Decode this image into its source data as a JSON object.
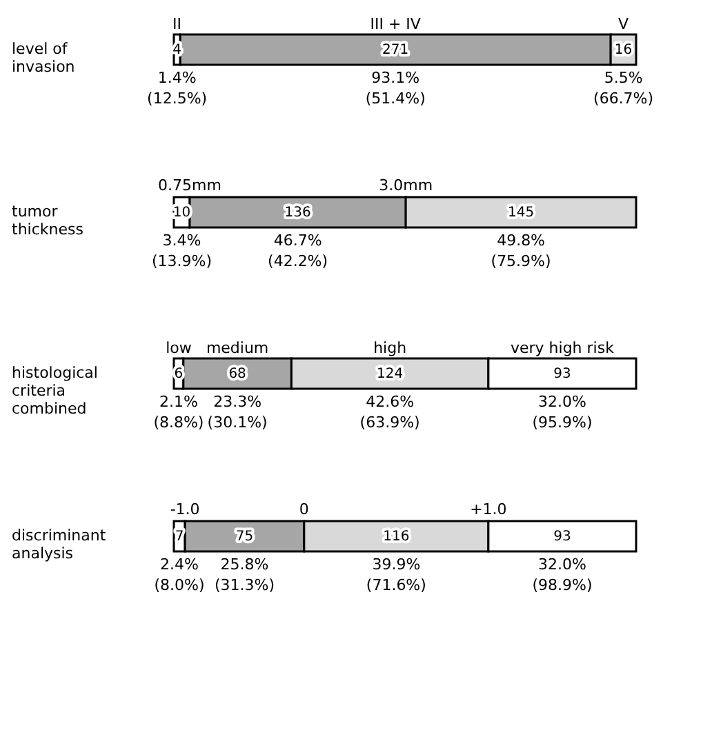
{
  "chart_data": [
    {
      "type": "bar",
      "orientation": "horizontal",
      "stacked": true,
      "data_labels": true,
      "categories": [
        "level of\ninvasion"
      ],
      "series": [
        {
          "name": "II",
          "color": "#ffffff",
          "values": [
            4
          ]
        },
        {
          "name": "III + IV",
          "color": "#a6a6a6",
          "values": [
            271
          ]
        },
        {
          "name": "V",
          "color": "#d9d9d9",
          "values": [
            16
          ]
        }
      ],
      "annotations": [
        "1.4%\n(12.5%)",
        "93.1%\n(51.4%)",
        "5.5%\n(66.7%)"
      ]
    },
    {
      "type": "bar",
      "orientation": "horizontal",
      "stacked": true,
      "data_labels": true,
      "categories": [
        "tumor\nthickness"
      ],
      "series": [
        {
          "color": "#ffffff",
          "values": [
            10
          ]
        },
        {
          "color": "#a6a6a6",
          "values": [
            136
          ]
        },
        {
          "color": "#d9d9d9",
          "values": [
            145
          ]
        }
      ],
      "annotations": [
        "3.4%\n(13.9%)",
        "46.7%\n(42.2%)",
        "49.8%\n(75.9%)",
        {
          "text": "0.75mm",
          "x": 10,
          "y": "tumor\nthickness"
        },
        {
          "text": "3.0mm",
          "x": 146,
          "y": "tumor\nthickness"
        }
      ]
    },
    {
      "type": "bar",
      "orientation": "horizontal",
      "stacked": true,
      "data_labels": true,
      "categories": [
        "histological\ncriteria\ncombined"
      ],
      "series": [
        {
          "name": "low",
          "color": "#ffffff",
          "values": [
            6
          ]
        },
        {
          "name": "medium",
          "color": "#a6a6a6",
          "values": [
            68
          ]
        },
        {
          "name": "high",
          "color": "#d9d9d9",
          "values": [
            124
          ]
        },
        {
          "name": "very high risk",
          "color": "#ffffff",
          "values": [
            93
          ]
        }
      ],
      "annotations": [
        "2.1%\n(8.8%)",
        "23.3%\n(30.1%)",
        "42.6%\n(63.9%)",
        "32.0%\n(95.9%)"
      ]
    },
    {
      "type": "bar",
      "orientation": "horizontal",
      "stacked": true,
      "data_labels": true,
      "categories": [
        "discriminant\nanalysis"
      ],
      "series": [
        {
          "color": "#ffffff",
          "values": [
            7
          ]
        },
        {
          "color": "#a6a6a6",
          "values": [
            75
          ]
        },
        {
          "color": "#d9d9d9",
          "values": [
            116
          ]
        },
        {
          "color": "#ffffff",
          "values": [
            93
          ]
        }
      ],
      "annotations": [
        "2.4%\n(8.0%)",
        "25.8%\n(31.3%)",
        "39.9%\n(71.6%)",
        "32.0%\n(98.9%)",
        {
          "text": "-1.0",
          "x": 7,
          "y": "discriminant\nanalysis"
        },
        {
          "text": "0",
          "x": 82,
          "y": "discriminant\nanalysis"
        },
        {
          "text": "+1.0",
          "x": 198,
          "y": "discriminant\nanalysis"
        }
      ]
    }
  ]
}
